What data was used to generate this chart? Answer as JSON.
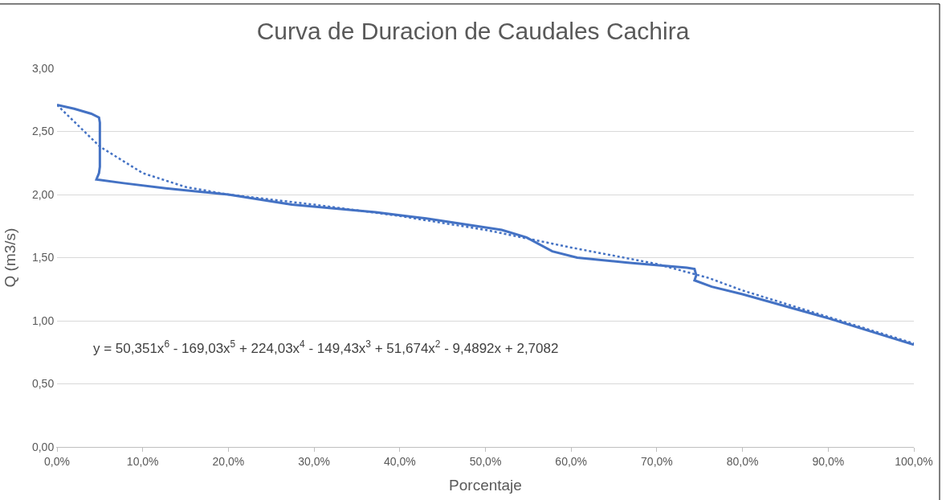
{
  "chart_data": {
    "type": "line",
    "title": "Curva de Duracion de Caudales Cachira",
    "xlabel": "Porcentaje",
    "ylabel": "Q (m3/s)",
    "series": [
      {
        "color": "#4472c4",
        "line_style": "solid",
        "x": [
          0,
          2,
          4,
          4.9,
          5.0,
          5.0,
          4.9,
          4.6,
          7.8,
          12.7,
          20,
          27.4,
          37.2,
          43.1,
          51.9,
          54.8,
          57.8,
          60.7,
          66.6,
          73.5,
          74.4,
          74.6,
          74.4,
          76.4,
          80,
          90,
          100
        ],
        "values": [
          2.71,
          2.68,
          2.64,
          2.61,
          2.57,
          2.22,
          2.17,
          2.12,
          2.09,
          2.05,
          2.0,
          1.92,
          1.86,
          1.81,
          1.72,
          1.66,
          1.55,
          1.5,
          1.46,
          1.42,
          1.41,
          1.36,
          1.32,
          1.27,
          1.21,
          1.02,
          0.81
        ]
      },
      {
        "color": "#4472c4",
        "line_style": "dotted",
        "x": [
          0,
          5,
          10,
          15,
          20,
          30,
          40,
          50,
          60,
          70,
          76,
          80,
          90,
          100
        ],
        "values": [
          2.71,
          2.38,
          2.17,
          2.06,
          2.0,
          1.92,
          1.83,
          1.72,
          1.58,
          1.45,
          1.34,
          1.24,
          1.03,
          0.82
        ]
      }
    ],
    "annotations": [
      "y = 50,351x$^{6}$ - 169,03x$^{5}$ + 224,03x$^{4}$ - 149,43x$^{3}$ + 51,674x$^{2}$ - 9,4892x + 2,7082"
    ],
    "xlim": [
      0,
      100
    ],
    "xticks": [
      {
        "value": 0,
        "label": "0,0%"
      },
      {
        "value": 10,
        "label": "10,0%"
      },
      {
        "value": 20,
        "label": "20,0%"
      },
      {
        "value": 30,
        "label": "30,0%"
      },
      {
        "value": 40,
        "label": "40,0%"
      },
      {
        "value": 50,
        "label": "50,0%"
      },
      {
        "value": 60,
        "label": "60,0%"
      },
      {
        "value": 70,
        "label": "70,0%"
      },
      {
        "value": 80,
        "label": "80,0%"
      },
      {
        "value": 90,
        "label": "90,0%"
      },
      {
        "value": 100,
        "label": "100,0%"
      }
    ],
    "ylim": [
      0,
      3
    ],
    "yticks": [
      {
        "value": 0,
        "label": "0,00"
      },
      {
        "value": 0.5,
        "label": "0,50"
      },
      {
        "value": 1,
        "label": "1,00"
      },
      {
        "value": 1.5,
        "label": "1,50"
      },
      {
        "value": 2,
        "label": "2,00"
      },
      {
        "value": 2.5,
        "label": "2,50"
      },
      {
        "value": 3,
        "label": "3,00"
      }
    ],
    "grid": "y",
    "marker": "none"
  }
}
